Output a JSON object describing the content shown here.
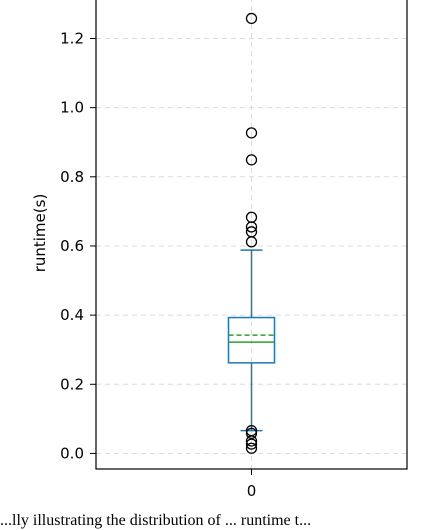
{
  "chart_data": {
    "type": "box",
    "ylabel": "runtime(s)",
    "categories": [
      "0"
    ],
    "ylim": [
      -0.045,
      1.32
    ],
    "yticks": [
      0.0,
      0.2,
      0.4,
      0.6,
      0.8,
      1.0,
      1.2
    ],
    "ytick_labels": [
      "0.0",
      "0.2",
      "0.4",
      "0.6",
      "0.8",
      "1.0",
      "1.2"
    ],
    "grid": true,
    "box": {
      "whisker_low": 0.066,
      "q1": 0.262,
      "median": 0.322,
      "mean": 0.342,
      "q3": 0.393,
      "whisker_high": 0.588,
      "outliers": [
        1.258,
        0.927,
        0.849,
        0.683,
        0.655,
        0.641,
        0.612,
        0.066,
        0.058,
        0.036,
        0.027,
        0.015
      ]
    },
    "colors": {
      "box": "#1f77b4",
      "median": "#2ca02c",
      "mean": "#2ca02c",
      "grid": "#dcdcdc"
    }
  },
  "caption": "...lly illustrating the distribution of ... runtime t..."
}
